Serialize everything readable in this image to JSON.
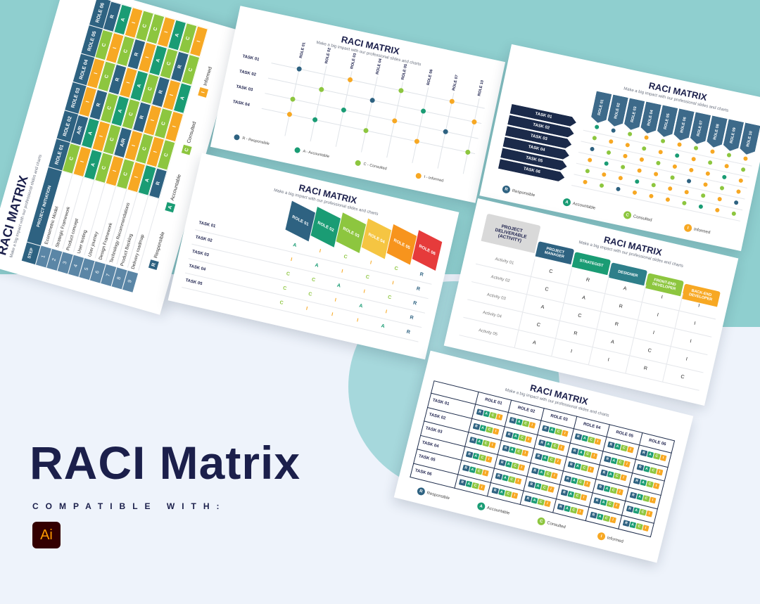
{
  "headline": "RACI Matrix",
  "compatible": "COMPATIBLE WITH:",
  "app_badge": "Ai",
  "letter_colors": {
    "R": "#2e6281",
    "A": "#1a9c74",
    "C": "#8dc63f",
    "I": "#f7a823"
  },
  "slides": [
    {
      "title": "RACI MATRIX",
      "subtitle": "Make a big impact with our professional slides and charts",
      "step_header": "STEP",
      "group_header": "PROJECT INITIATION",
      "roles": [
        "ROLE 01",
        "ROLE 02",
        "ROLE 03",
        "ROLE 04",
        "ROLE 05",
        "ROLE 06"
      ],
      "rows": [
        {
          "step": 1,
          "activity": "Econometric Model",
          "cells": [
            "C",
            "A/R",
            "I",
            "I",
            "C",
            "R"
          ]
        },
        {
          "step": 2,
          "activity": "Strategic Framework",
          "cells": [
            "I",
            "A",
            "R",
            "C",
            "I",
            "A"
          ]
        },
        {
          "step": 3,
          "activity": "Product concept",
          "cells": [
            "A",
            "I",
            "C",
            "R",
            "C",
            "I"
          ]
        },
        {
          "step": 4,
          "activity": "User testing",
          "cells": [
            "C",
            "C",
            "A",
            "I",
            "R",
            "C"
          ]
        },
        {
          "step": 5,
          "activity": "User journey",
          "cells": [
            "I",
            "A/R",
            "C",
            "A",
            "I",
            "C"
          ]
        },
        {
          "step": 6,
          "activity": "Design Framework",
          "cells": [
            "C",
            "I",
            "R",
            "C",
            "A",
            "I"
          ]
        },
        {
          "step": 7,
          "activity": "Technology Recommendations",
          "cells": [
            "I",
            "C",
            "I",
            "R",
            "C",
            "A"
          ]
        },
        {
          "step": 8,
          "activity": "Product Backlog",
          "cells": [
            "A",
            "I",
            "C",
            "I",
            "R",
            "C"
          ]
        },
        {
          "step": 9,
          "activity": "Delivery roadmap",
          "cells": [
            "R",
            "C",
            "I",
            "A",
            "C",
            "I"
          ]
        }
      ],
      "legend": [
        {
          "letter": "R",
          "label": "Responsible"
        },
        {
          "letter": "A",
          "label": "Accountable"
        },
        {
          "letter": "C",
          "label": "Consulted"
        },
        {
          "letter": "I",
          "label": "Informed"
        }
      ]
    },
    {
      "title": "RACI MATRIX",
      "subtitle": "Make a big impact with our professional slides and charts",
      "roles": [
        "ROLE 01",
        "ROLE 02",
        "ROLE 03",
        "ROLE 04",
        "ROLE 05",
        "ROLE 06",
        "ROLE 07",
        "ROLE 10"
      ],
      "tasks": [
        "TASK 01",
        "TASK 02",
        "TASK 03",
        "TASK 04"
      ],
      "cells": [
        [
          "R",
          null,
          "I",
          null,
          "C",
          null,
          "I",
          null
        ],
        [
          null,
          "C",
          null,
          "R",
          null,
          "A",
          null,
          "I"
        ],
        [
          "C",
          null,
          "A",
          null,
          "I",
          null,
          "R",
          null
        ],
        [
          "I",
          "A",
          null,
          "C",
          null,
          "I",
          null,
          "C"
        ]
      ],
      "legend": [
        {
          "label": "R - Responsible"
        },
        {
          "label": "A - Accountable"
        },
        {
          "label": "C - Consulted"
        },
        {
          "label": "I - Informed"
        }
      ]
    },
    {
      "title": "RACI MATRIX",
      "subtitle": "Make a big impact with our professional slides and charts",
      "roles": [
        "ROLE 01",
        "ROLE 02",
        "ROLE 03",
        "ROLE 04",
        "ROLE 05",
        "ROLE 06"
      ],
      "header_colors": [
        "#2e6281",
        "#1a9c74",
        "#8dc63f",
        "#f5c542",
        "#f7941d",
        "#e63b3b"
      ],
      "tasks": [
        "TASK 01",
        "TASK 02",
        "TASK 03",
        "TASK 04",
        "TASK 05"
      ],
      "cells": [
        [
          "A",
          "I",
          "C",
          "I",
          "C",
          "R"
        ],
        [
          "I",
          "A",
          "I",
          "C",
          "I",
          "R"
        ],
        [
          "C",
          "C",
          "A",
          "I",
          "C",
          "R"
        ],
        [
          "C",
          "C",
          "I",
          "A",
          "I",
          "R"
        ],
        [
          "C",
          "I",
          "I",
          "I",
          "A",
          "R"
        ]
      ]
    },
    {
      "title": "RACI MATRIX",
      "subtitle": "Make a big impact with our professional slides and charts",
      "tasks": [
        "TASK 01",
        "TASK 02",
        "TASK 03",
        "TASK 04",
        "TASK 05",
        "TASK 06"
      ],
      "roles": [
        "ROLE 01",
        "ROLE 02",
        "ROLE 03",
        "ROLE 04",
        "ROLE 05",
        "ROLE 06",
        "ROLE 07",
        "ROLE 08",
        "ROLE 09",
        "ROLE 10"
      ],
      "cells": [
        [
          "A",
          "R",
          "C",
          "I",
          "C",
          "I",
          "C",
          "I",
          "C",
          "I"
        ],
        [
          "C",
          "I",
          "I",
          "C",
          "I",
          "A",
          "I",
          "C",
          "I",
          "C"
        ],
        [
          "R",
          "C",
          "I",
          "I",
          "C",
          "I",
          "I",
          "I",
          "A",
          "I"
        ],
        [
          "I",
          "A",
          "C",
          "I",
          "I",
          "C",
          "R",
          "I",
          "C",
          "I"
        ],
        [
          "C",
          "I",
          "I",
          "A",
          "C",
          "I",
          "I",
          "C",
          "I",
          "R"
        ],
        [
          "I",
          "C",
          "R",
          "I",
          "I",
          "I",
          "C",
          "A",
          "I",
          "C"
        ]
      ],
      "legend": [
        {
          "letter": "R",
          "label": "Responsible"
        },
        {
          "letter": "A",
          "label": "Accountable"
        },
        {
          "letter": "C",
          "label": "Consulted"
        },
        {
          "letter": "I",
          "label": "Informed"
        }
      ]
    },
    {
      "title": "RACI MATRIX",
      "subtitle": "Make a big impact with our professional slides and charts",
      "corner": "PROJECT DELIVERABLE (ACTIVITY)",
      "roles": [
        "PROJECT MANAGER",
        "STRATEGIST",
        "DESIGNER",
        "FRONT-END DEVELOPER",
        "BACK-END DEVELOPER"
      ],
      "header_colors": [
        "#2e6281",
        "#1a9c74",
        "#2e7f8a",
        "#8dc63f",
        "#f7a823"
      ],
      "tasks": [
        "Activity 01",
        "Activity 02",
        "Activity 03",
        "Activity 04",
        "Activity 05"
      ],
      "cells": [
        [
          "C",
          "R",
          "A",
          "I",
          "I"
        ],
        [
          "C",
          "A",
          "R",
          "I",
          "I"
        ],
        [
          "A",
          "C",
          "R",
          "I",
          "I"
        ],
        [
          "C",
          "R",
          "A",
          "C",
          "I"
        ],
        [
          "A",
          "I",
          "I",
          "R",
          "C"
        ]
      ]
    },
    {
      "title": "RACI MATRIX",
      "subtitle": "Make a big impact with our professional slides and charts",
      "roles": [
        "ROLE 01",
        "ROLE 02",
        "ROLE 03",
        "ROLE 04",
        "ROLE 05",
        "ROLE 06"
      ],
      "tasks": [
        "TASK 01",
        "TASK 02",
        "TASK 03",
        "TASK 04",
        "TASK 05",
        "TASK 06"
      ],
      "legend": [
        {
          "letter": "R",
          "label": "Responsible"
        },
        {
          "letter": "A",
          "label": "Accountable"
        },
        {
          "letter": "C",
          "label": "Consulted"
        },
        {
          "letter": "I",
          "label": "Informed"
        }
      ]
    }
  ]
}
